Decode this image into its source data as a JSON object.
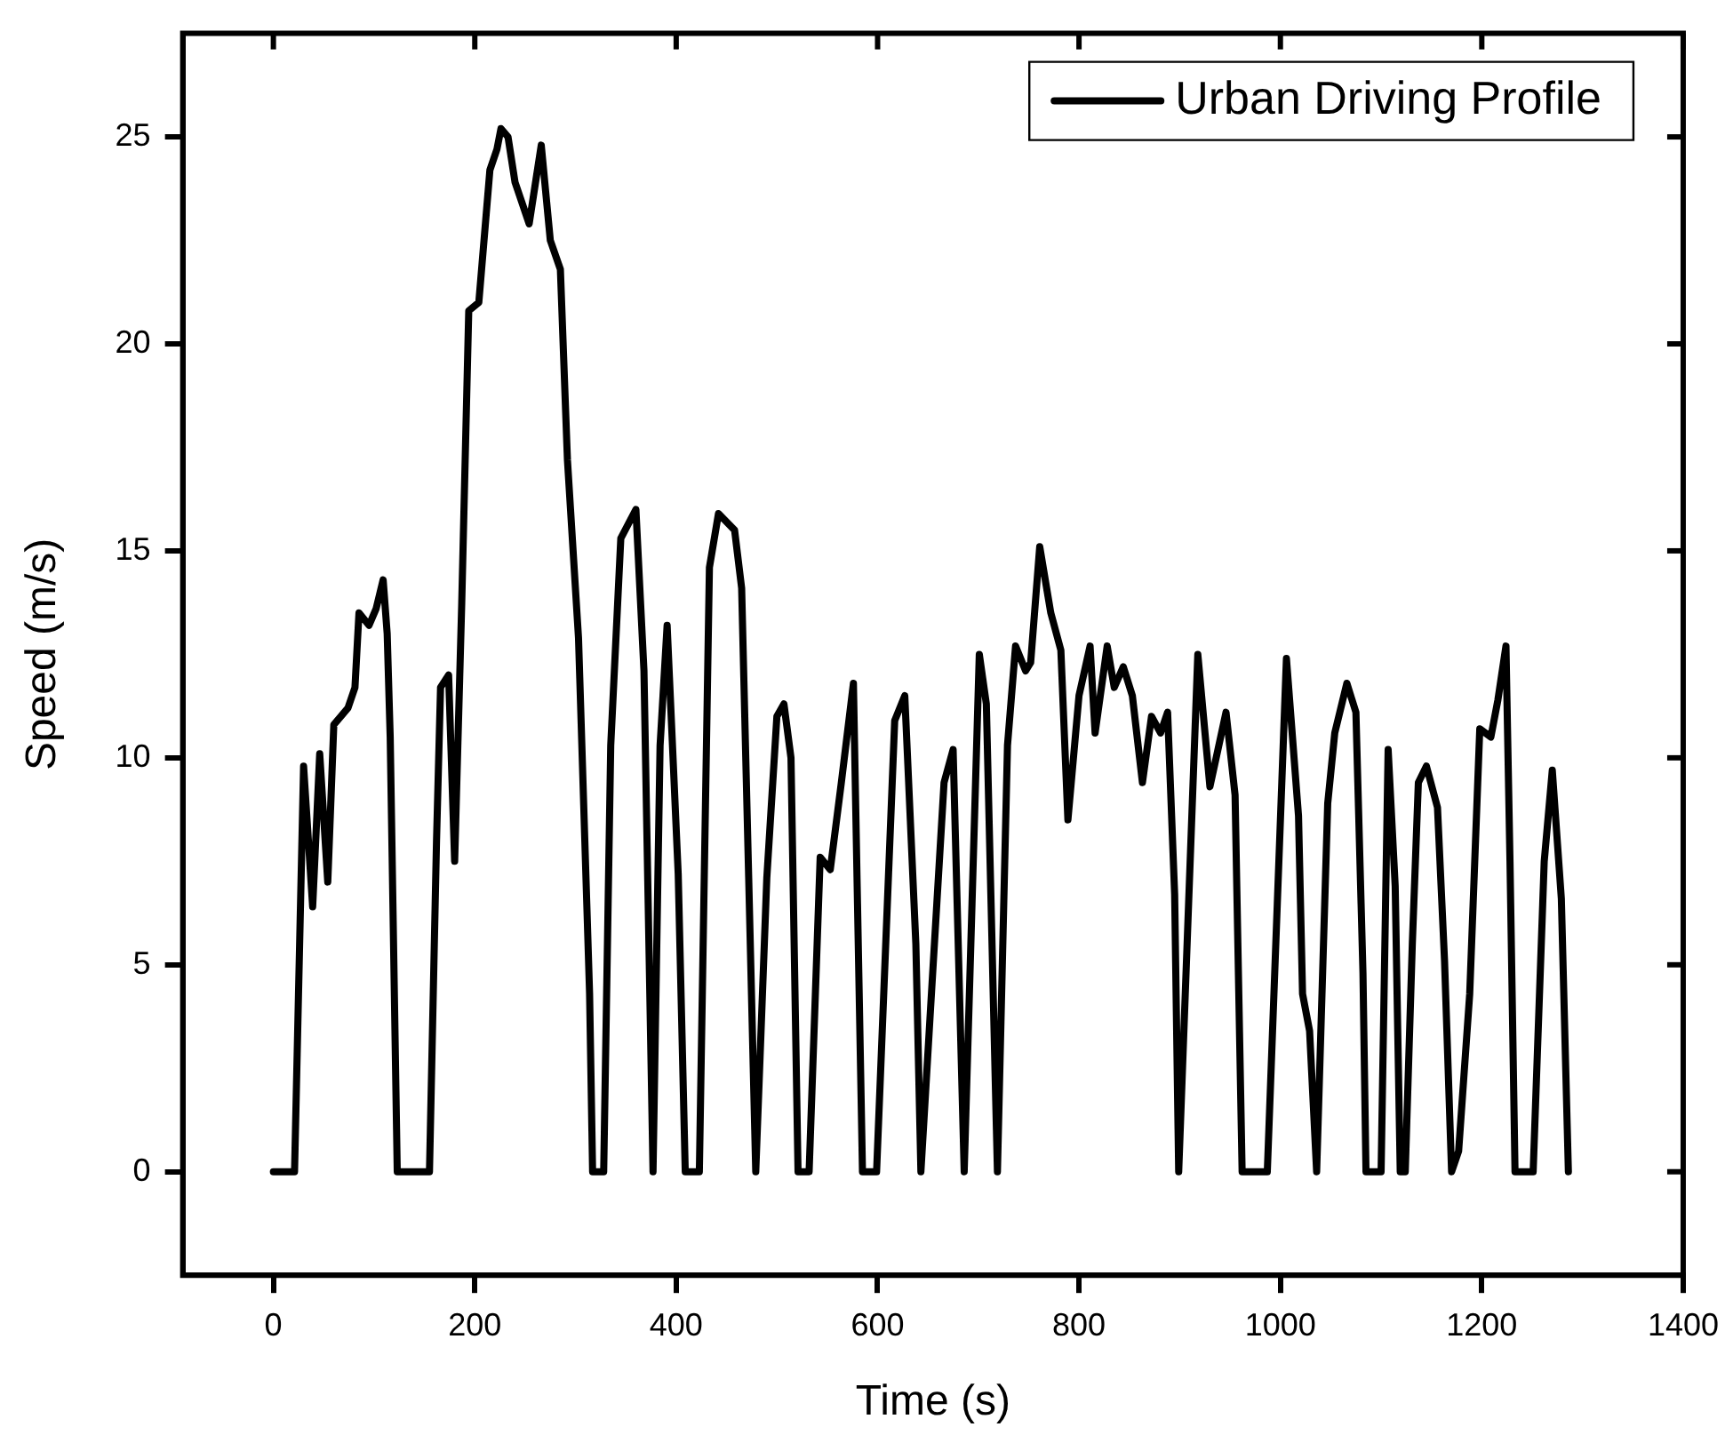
{
  "chart_data": {
    "type": "line",
    "xlabel": "Time (s)",
    "ylabel": "Speed (m/s)",
    "xlim": [
      -90,
      1400
    ],
    "xticks": [
      0,
      200,
      400,
      600,
      800,
      1000,
      1200,
      1400
    ],
    "ylim": [
      -2.5,
      27.5
    ],
    "yticks": [
      0,
      5,
      10,
      15,
      20,
      25
    ],
    "legend": "top right",
    "marker": "none",
    "line_style": "solid",
    "grid": false,
    "series": [
      {
        "name": "Urban Driving Profile",
        "color": "#000000",
        "x": [
          0,
          21,
          30,
          39,
          46,
          54,
          60,
          74,
          81,
          85,
          95,
          102,
          109,
          113,
          116,
          123,
          155,
          162,
          166,
          174,
          180,
          187,
          194,
          204,
          215,
          222,
          226,
          233,
          240,
          254,
          266,
          275,
          285,
          292,
          303,
          314,
          317,
          328,
          335,
          345,
          360,
          368,
          377,
          384,
          391,
          402,
          409,
          423,
          433,
          442,
          458,
          465,
          472,
          479,
          490,
          500,
          507,
          514,
          521,
          532,
          543,
          553,
          564,
          576,
          585,
          599,
          617,
          627,
          638,
          643,
          652,
          666,
          675,
          686,
          701,
          708,
          719,
          729,
          737,
          747,
          752,
          761,
          772,
          782,
          789,
          800,
          811,
          816,
          828,
          835,
          844,
          853,
          863,
          872,
          881,
          888,
          895,
          899,
          918,
          930,
          946,
          955,
          962,
          987,
          1006,
          1018,
          1022,
          1029,
          1036,
          1047,
          1054,
          1066,
          1075,
          1082,
          1085,
          1100,
          1107,
          1114,
          1119,
          1124,
          1131,
          1137,
          1145,
          1156,
          1163,
          1170,
          1177,
          1188,
          1198,
          1209,
          1216,
          1224,
          1228,
          1233,
          1251,
          1262,
          1270,
          1279,
          1286
        ],
        "values": [
          0,
          0,
          9.8,
          6.4,
          10.1,
          7.0,
          10.8,
          11.2,
          11.7,
          13.5,
          13.2,
          13.6,
          14.3,
          13,
          10.5,
          0,
          0,
          8,
          11.7,
          12,
          7.5,
          13.7,
          20.8,
          21.0,
          24.2,
          24.7,
          25.2,
          25,
          23.9,
          22.9,
          24.8,
          22.5,
          21.8,
          17.2,
          12.9,
          4.3,
          0,
          0,
          10.3,
          15.3,
          16.0,
          12.1,
          0,
          10.3,
          13.2,
          7.2,
          0,
          0,
          14.6,
          15.9,
          15.5,
          14.1,
          7.1,
          0,
          7.1,
          11.0,
          11.3,
          10.0,
          0,
          0,
          7.6,
          7.3,
          9.4,
          11.8,
          0,
          0,
          10.9,
          11.5,
          5.5,
          0,
          3.7,
          9.4,
          10.2,
          0,
          12.5,
          11.3,
          0,
          10.3,
          12.7,
          12.1,
          12.3,
          15.1,
          13.5,
          12.6,
          8.5,
          11.5,
          12.7,
          10.6,
          12.7,
          11.7,
          12.2,
          11.5,
          9.4,
          11.0,
          10.6,
          11.1,
          6.7,
          0,
          12.5,
          9.3,
          11.1,
          9.1,
          0,
          0,
          12.4,
          8.6,
          4.3,
          3.4,
          0,
          8.9,
          10.6,
          11.8,
          11.1,
          4.8,
          0,
          0,
          10.2,
          6.9,
          0,
          0,
          5.5,
          9.4,
          9.8,
          8.8,
          5.1,
          0,
          0.5,
          4.3,
          10.7,
          10.5,
          11.4,
          12.7,
          7.5,
          0,
          0,
          7.5,
          9.7,
          6.6,
          0
        ]
      }
    ]
  }
}
